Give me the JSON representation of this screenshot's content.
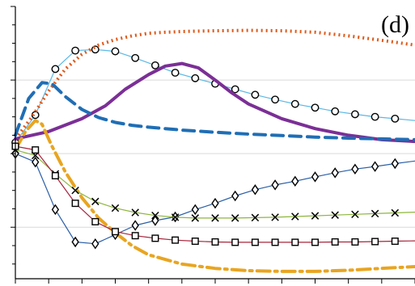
{
  "chart_data": {
    "type": "line",
    "title": "",
    "xlabel": "",
    "ylabel": "",
    "panel_label": "(d)",
    "xlim": [
      0,
      12
    ],
    "ylim": [
      -3.4,
      4.0
    ],
    "grid": {
      "horizontal": true,
      "vertical": false
    },
    "legend": "none",
    "series": [
      {
        "color": "#5bb8e6",
        "dash": "solid",
        "width": 1.2,
        "marker": "circle",
        "x": [
          0,
          0.6,
          1.2,
          1.8,
          2.4,
          3.0,
          3.6,
          4.2,
          4.8,
          5.4,
          6.0,
          6.6,
          7.2,
          7.8,
          8.4,
          9.0,
          9.6,
          10.2,
          10.8,
          11.4,
          12.0
        ],
        "y": [
          0.3,
          1.05,
          2.3,
          2.8,
          2.83,
          2.78,
          2.6,
          2.4,
          2.2,
          2.05,
          1.9,
          1.75,
          1.6,
          1.47,
          1.35,
          1.25,
          1.15,
          1.07,
          1.0,
          0.95,
          0.9
        ],
        "marker_x": [
          0,
          0.6,
          1.2,
          1.8,
          2.4,
          3.0,
          3.6,
          4.2,
          4.8,
          5.4,
          6.0,
          6.6,
          7.2,
          7.8,
          8.4,
          9.0,
          9.6,
          10.2,
          10.8,
          11.4
        ]
      },
      {
        "color": "#e05a1a",
        "dash": "dotted",
        "width": 4,
        "x": [
          0,
          0.5,
          1.0,
          1.5,
          2.0,
          2.5,
          3.0,
          3.5,
          4.0,
          4.5,
          5.0,
          5.5,
          6.0,
          7.0,
          8.0,
          9.0,
          10.0,
          11.0,
          12.0
        ],
        "y": [
          0.4,
          1.0,
          1.7,
          2.3,
          2.7,
          2.95,
          3.1,
          3.2,
          3.27,
          3.3,
          3.32,
          3.33,
          3.34,
          3.35,
          3.34,
          3.3,
          3.2,
          3.08,
          2.95
        ]
      },
      {
        "color": "#7b2f96",
        "dash": "solid",
        "width": 4,
        "x": [
          0,
          1.0,
          2.0,
          2.7,
          3.3,
          4.0,
          4.5,
          5.0,
          5.5,
          6.0,
          6.5,
          7.0,
          8.0,
          9.0,
          10.0,
          11.0,
          12.0
        ],
        "y": [
          0.4,
          0.6,
          0.95,
          1.3,
          1.75,
          2.15,
          2.38,
          2.45,
          2.33,
          2.0,
          1.65,
          1.35,
          0.95,
          0.68,
          0.5,
          0.38,
          0.33
        ]
      },
      {
        "color": "#1f6eb5",
        "dash": "dashed",
        "width": 4,
        "x": [
          0,
          0.4,
          0.8,
          1.1,
          1.5,
          2.0,
          2.5,
          3.0,
          3.5,
          4.0,
          5.0,
          6.0,
          7.0,
          8.0,
          9.0,
          10.0,
          11.0,
          12.0
        ],
        "y": [
          0.5,
          1.5,
          1.93,
          1.9,
          1.55,
          1.2,
          0.98,
          0.85,
          0.77,
          0.72,
          0.64,
          0.58,
          0.53,
          0.49,
          0.45,
          0.42,
          0.4,
          0.38
        ]
      },
      {
        "color": "#e8a521",
        "dash": "dashdot",
        "width": 4,
        "x": [
          0,
          0.3,
          0.6,
          0.8,
          1.1,
          1.5,
          2.0,
          2.5,
          3.0,
          3.5,
          4.0,
          5.0,
          6.0,
          7.0,
          8.0,
          9.0,
          10.0,
          11.0,
          12.0
        ],
        "y": [
          0.1,
          0.6,
          0.9,
          0.8,
          0.2,
          -0.5,
          -1.2,
          -1.75,
          -2.15,
          -2.5,
          -2.75,
          -3.0,
          -3.12,
          -3.18,
          -3.2,
          -3.2,
          -3.17,
          -3.12,
          -3.07
        ]
      },
      {
        "color": "#2b5fa8",
        "dash": "solid",
        "width": 1.2,
        "marker": "diamond",
        "x": [
          0,
          0.6,
          1.2,
          1.8,
          2.4,
          3.0,
          3.6,
          4.2,
          4.8,
          5.4,
          6.0,
          6.6,
          7.2,
          7.8,
          8.4,
          9.0,
          9.6,
          10.2,
          10.8,
          11.4,
          12.0
        ],
        "y": [
          0.0,
          -0.23,
          -1.52,
          -2.4,
          -2.45,
          -2.2,
          -1.95,
          -1.82,
          -1.72,
          -1.52,
          -1.35,
          -1.15,
          -0.98,
          -0.85,
          -0.75,
          -0.63,
          -0.52,
          -0.42,
          -0.35,
          -0.27,
          -0.2
        ],
        "marker_x": [
          0,
          0.6,
          1.2,
          1.8,
          2.4,
          3.0,
          3.6,
          4.2,
          4.8,
          5.4,
          6.0,
          6.6,
          7.2,
          7.8,
          8.4,
          9.0,
          9.6,
          10.2,
          10.8,
          11.4
        ]
      },
      {
        "color": "#8db63c",
        "dash": "solid",
        "width": 1.2,
        "marker": "x",
        "x": [
          0,
          0.6,
          1.2,
          1.8,
          2.4,
          3.0,
          3.6,
          4.2,
          4.8,
          5.4,
          6.0,
          6.6,
          7.2,
          7.8,
          8.4,
          9.0,
          9.6,
          10.2,
          10.8,
          11.4,
          12.0
        ],
        "y": [
          0.1,
          -0.05,
          -0.55,
          -1.0,
          -1.3,
          -1.48,
          -1.6,
          -1.68,
          -1.73,
          -1.75,
          -1.75,
          -1.75,
          -1.74,
          -1.73,
          -1.71,
          -1.69,
          -1.67,
          -1.65,
          -1.63,
          -1.61,
          -1.59
        ],
        "marker_x": [
          0,
          0.6,
          1.2,
          1.8,
          2.4,
          3.0,
          3.6,
          4.2,
          4.8,
          5.4,
          6.0,
          6.6,
          7.2,
          7.8,
          8.4,
          9.0,
          9.6,
          10.2,
          10.8,
          11.4
        ]
      },
      {
        "color": "#a8243c",
        "dash": "solid",
        "width": 1.2,
        "marker": "square",
        "x": [
          0,
          0.6,
          1.2,
          1.8,
          2.4,
          3.0,
          3.6,
          4.2,
          4.8,
          5.4,
          6.0,
          6.6,
          7.2,
          7.8,
          8.4,
          9.0,
          9.6,
          10.2,
          10.8,
          11.4,
          12.0
        ],
        "y": [
          0.2,
          0.1,
          -0.6,
          -1.35,
          -1.85,
          -2.12,
          -2.23,
          -2.3,
          -2.35,
          -2.38,
          -2.4,
          -2.41,
          -2.41,
          -2.41,
          -2.41,
          -2.41,
          -2.4,
          -2.4,
          -2.39,
          -2.38,
          -2.37
        ],
        "marker_x": [
          0,
          0.6,
          1.2,
          1.8,
          2.4,
          3.0,
          3.6,
          4.2,
          4.8,
          5.4,
          6.0,
          6.6,
          7.2,
          7.8,
          8.4,
          9.0,
          9.6,
          10.2,
          10.8,
          11.4
        ]
      }
    ]
  }
}
